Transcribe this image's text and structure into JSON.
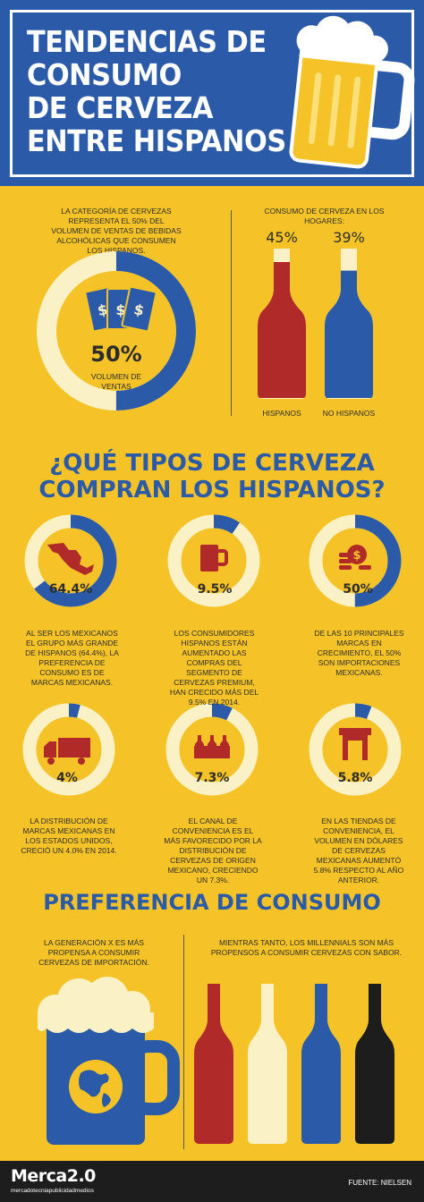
{
  "header": {
    "title_lines": [
      "TENDENCIAS DE",
      "CONSUMO",
      "DE CERVEZA",
      "ENTRE HISPANOS"
    ]
  },
  "section1": {
    "sales_text": "La categoría de cervezas representa el 50% del volumen de ventas de bebidas alcohólicas que consumen los hispanos.",
    "sales_pct": "50%",
    "sales_fraction": 0.5,
    "sales_caption": "VOLUMEN DE VENTAS",
    "homes_title": "CONSUMO DE CERVEZA EN LOS HOGARES:",
    "hispanos_pct": "45%",
    "hispanos_label": "HISPANOS",
    "no_hispanos_pct": "39%",
    "no_hispanos_label": "NO HISPANOS",
    "hispanos_fill": 0.45,
    "no_hispanos_fill": 0.39
  },
  "section2": {
    "heading_lines": [
      "¿QUÉ TIPOS DE CERVEZA",
      "COMPRAN LOS HISPANOS?"
    ],
    "items": [
      {
        "pct": "64.4%",
        "fraction": 0.644,
        "icon": "mexico-map-icon",
        "text": "Al ser los mexicanos el grupo más grande de hispanos (64.4%), la preferencia de consumo es de marcas mexicanas."
      },
      {
        "pct": "9.5%",
        "fraction": 0.095,
        "icon": "beer-mug-icon",
        "text": "Los consumidores hispanos están aumentado las compras del segmento de cervezas premium, han crecido más del 9.5% en 2014."
      },
      {
        "pct": "50%",
        "fraction": 0.5,
        "icon": "money-coins-icon",
        "text": "De las 10 principales marcas en crecimiento, el 50% son importaciones mexicanas."
      },
      {
        "pct": "4%",
        "fraction": 0.04,
        "icon": "delivery-truck-icon",
        "text": "La distribución de marcas mexicanas en los Estados Unidos, creció un 4.0% en 2014."
      },
      {
        "pct": "7.3%",
        "fraction": 0.073,
        "icon": "beer-bottles-icon",
        "text": "El canal de conveniencia es el más favorecido por la distribución de cervezas de origen mexicano, creciendo un 7.3%."
      },
      {
        "pct": "5.8%",
        "fraction": 0.058,
        "icon": "store-icon",
        "text": "En las tiendas de conveniencia, el volumen en dólares de cervezas mexicanas aumentó 5.8% respecto al año anterior."
      }
    ]
  },
  "section3": {
    "heading": "PREFERENCIA DE CONSUMO",
    "genx_text": "La generación X es más propensa a consumir cervezas de importación.",
    "millennials_text": "Mientras tanto, los millennials son más propensos a consumir cervezas con sabor."
  },
  "footer": {
    "brand": "Merca2.0",
    "brand_sub": "mercadotecniapublicidadmedios",
    "source": "FUENTE: NIELSEN"
  },
  "colors": {
    "blue": "#2a5aa8",
    "yellow": "#f5c327",
    "cream": "#fbf1c6",
    "red": "#b02a2a",
    "dark": "#1d1d1d"
  }
}
